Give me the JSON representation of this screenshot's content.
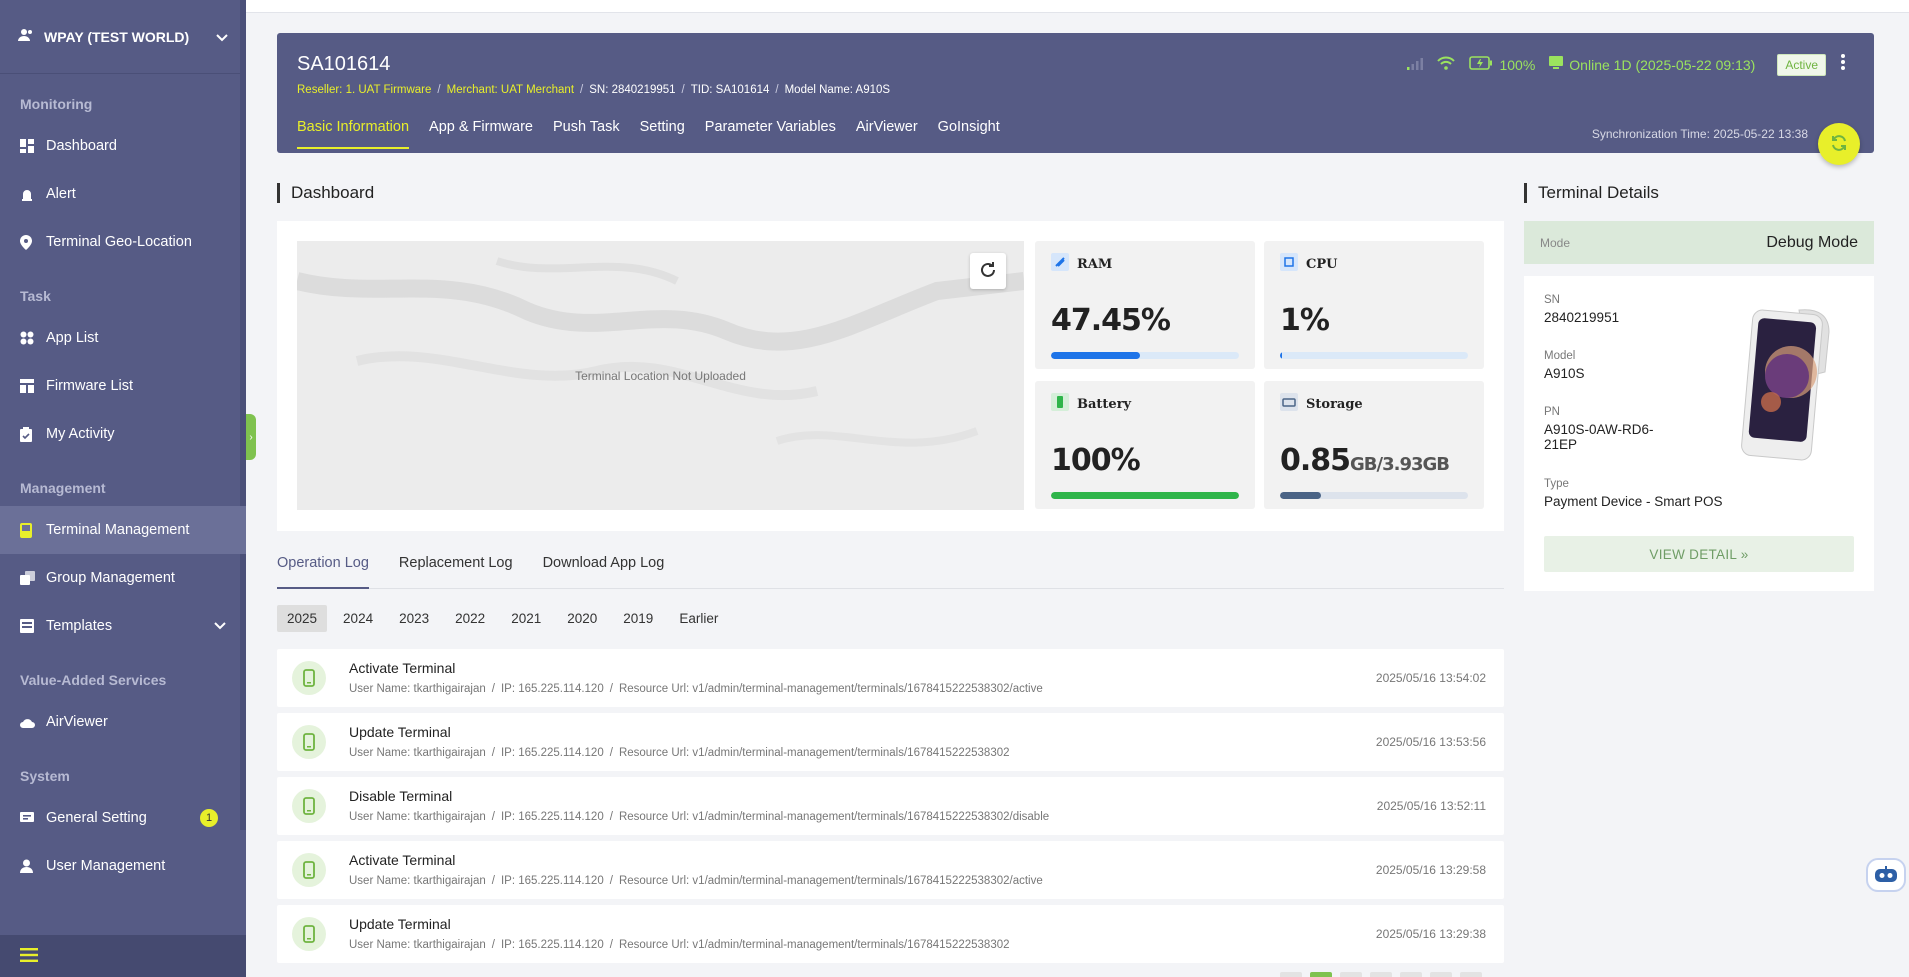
{
  "sidebar": {
    "workspace": "WPAY (TEST WORLD)",
    "sections": {
      "monitoring": "Monitoring",
      "task": "Task",
      "management": "Management",
      "vas": "Value-Added Services",
      "system": "System"
    },
    "items": {
      "dashboard": "Dashboard",
      "alert": "Alert",
      "geo": "Terminal Geo-Location",
      "app_list": "App List",
      "firmware_list": "Firmware List",
      "my_activity": "My Activity",
      "terminal_mgmt": "Terminal Management",
      "group_mgmt": "Group Management",
      "templates": "Templates",
      "airviewer": "AirViewer",
      "general_setting": "General Setting",
      "user_mgmt": "User Management"
    },
    "general_setting_badge": "1"
  },
  "header": {
    "title": "SA101614",
    "reseller": "Reseller: 1. UAT Firmware",
    "merchant": "Merchant: UAT Merchant",
    "sn": "SN: 2840219951",
    "tid": "TID: SA101614",
    "model": "Model Name: A910S",
    "battery": "100%",
    "online": "Online 1D (2025-05-22 09:13)",
    "status_badge": "Active",
    "sync_time": "Synchronization Time: 2025-05-22 13:38",
    "tabs": [
      "Basic Information",
      "App & Firmware",
      "Push Task",
      "Setting",
      "Parameter Variables",
      "AirViewer",
      "GoInsight"
    ],
    "active_tab": 0
  },
  "dashboard": {
    "title": "Dashboard",
    "map_message": "Terminal Location Not Uploaded",
    "ram": {
      "label": "RAM",
      "value": "47.45%",
      "fill": 0.4745,
      "color": "#1e74e8"
    },
    "cpu": {
      "label": "CPU",
      "value": "1%",
      "fill": 0.01,
      "color": "#1e74e8"
    },
    "battery": {
      "label": "Battery",
      "value": "100%",
      "fill": 1.0,
      "color": "#2fb54a"
    },
    "storage": {
      "label": "Storage",
      "used": "0.85",
      "used_unit": "GB",
      "total": "/3.93GB",
      "fill": 0.216,
      "color": "#4b6486"
    }
  },
  "terminal_details": {
    "title": "Terminal Details",
    "mode_label": "Mode",
    "mode_value": "Debug Mode",
    "sn_label": "SN",
    "sn_value": "2840219951",
    "model_label": "Model",
    "model_value": "A910S",
    "pn_label": "PN",
    "pn_value": "A910S-0AW-RD6-21EP",
    "type_label": "Type",
    "type_value": "Payment Device - Smart POS",
    "view_detail": "VIEW DETAIL »"
  },
  "log_tabs": [
    "Operation Log",
    "Replacement Log",
    "Download App Log"
  ],
  "years": [
    "2025",
    "2024",
    "2023",
    "2022",
    "2021",
    "2020",
    "2019",
    "Earlier"
  ],
  "logs": [
    {
      "title": "Activate Terminal",
      "user": "User Name: tkarthigairajan",
      "ip": "IP: 165.225.114.120",
      "url": "Resource Url: v1/admin/terminal-management/terminals/1678415222538302/active",
      "time": "2025/05/16 13:54:02"
    },
    {
      "title": "Update Terminal",
      "user": "User Name: tkarthigairajan",
      "ip": "IP: 165.225.114.120",
      "url": "Resource Url: v1/admin/terminal-management/terminals/1678415222538302",
      "time": "2025/05/16 13:53:56"
    },
    {
      "title": "Disable Terminal",
      "user": "User Name: tkarthigairajan",
      "ip": "IP: 165.225.114.120",
      "url": "Resource Url: v1/admin/terminal-management/terminals/1678415222538302/disable",
      "time": "2025/05/16 13:52:11"
    },
    {
      "title": "Activate Terminal",
      "user": "User Name: tkarthigairajan",
      "ip": "IP: 165.225.114.120",
      "url": "Resource Url: v1/admin/terminal-management/terminals/1678415222538302/active",
      "time": "2025/05/16 13:29:58"
    },
    {
      "title": "Update Terminal",
      "user": "User Name: tkarthigairajan",
      "ip": "IP: 165.225.114.120",
      "url": "Resource Url: v1/admin/terminal-management/terminals/1678415222538302",
      "time": "2025/05/16 13:29:38"
    }
  ],
  "colors": {
    "sidebar": "#565b85",
    "accent": "#e8ef2a",
    "online": "#9be35e"
  },
  "icons": [
    "users-icon",
    "chevron-down-icon",
    "dashboard-icon",
    "alarm-icon",
    "location-pin-icon",
    "apps-icon",
    "grid-icon",
    "clipboard-icon",
    "terminal-icon",
    "group-icon",
    "template-icon",
    "cloud-eye-icon",
    "settings-icon",
    "user-icon",
    "menu-icon",
    "signal-icon",
    "wifi-icon",
    "battery-charging-icon",
    "monitor-icon",
    "more-vertical-icon",
    "sync-icon",
    "refresh-icon",
    "pos-device-icon",
    "robot-icon"
  ]
}
